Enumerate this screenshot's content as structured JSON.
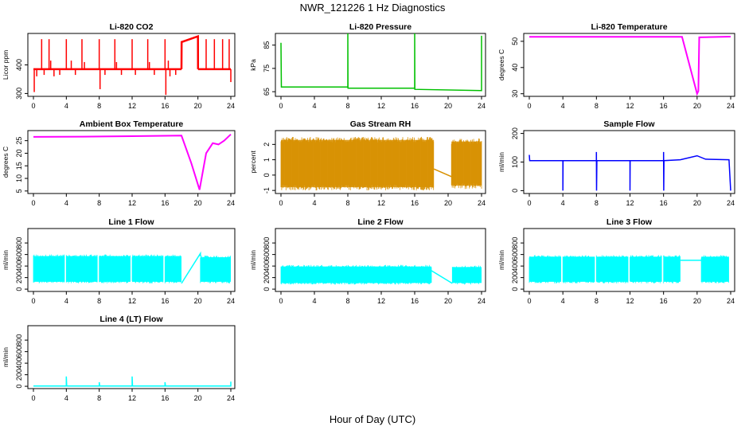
{
  "title": "NWR_121226  1 Hz Diagnostics",
  "xlabel": "Hour of Day (UTC)",
  "x_ticks": [
    0,
    4,
    8,
    12,
    16,
    20,
    24
  ],
  "chart_data": [
    {
      "type": "line",
      "title": "Li-820 CO2",
      "ylabel": "Licor ppm",
      "color": "#ff0000",
      "xlim": [
        0,
        24
      ],
      "ylim": [
        290,
        510
      ],
      "y_ticks": [
        300,
        400
      ],
      "baseline": 385,
      "series": [
        {
          "name": "",
          "values": []
        }
      ],
      "spikes_up": [
        [
          1.0,
          490
        ],
        [
          1.9,
          490
        ],
        [
          2.1,
          415
        ],
        [
          4.0,
          490
        ],
        [
          4.6,
          415
        ],
        [
          5.9,
          490
        ],
        [
          6.2,
          410
        ],
        [
          8.0,
          490
        ],
        [
          9.9,
          490
        ],
        [
          10.1,
          410
        ],
        [
          12.0,
          490
        ],
        [
          13.9,
          490
        ],
        [
          14.1,
          410
        ],
        [
          16.0,
          490
        ],
        [
          16.4,
          415
        ]
      ],
      "spikes_down": [
        [
          0.1,
          305
        ],
        [
          0.4,
          360
        ],
        [
          1.3,
          365
        ],
        [
          2.5,
          360
        ],
        [
          3.2,
          365
        ],
        [
          5.1,
          365
        ],
        [
          8.1,
          315
        ],
        [
          8.7,
          365
        ],
        [
          10.7,
          365
        ],
        [
          12.4,
          365
        ],
        [
          14.7,
          365
        ],
        [
          16.1,
          295
        ],
        [
          16.6,
          360
        ],
        [
          17.3,
          365
        ]
      ],
      "segments": [
        {
          "x": [
            0,
            18.0
          ],
          "y": [
            385,
            385
          ]
        },
        {
          "x": [
            18.0,
            18.02,
            20.0,
            20.01
          ],
          "y": [
            385,
            480,
            500,
            385
          ]
        },
        {
          "x": [
            20.01,
            24
          ],
          "y": [
            385,
            385
          ]
        }
      ],
      "spikes_after": [
        [
          21.0,
          490
        ],
        [
          22.0,
          490
        ],
        [
          23.0,
          490
        ],
        [
          23.8,
          490
        ],
        [
          24.0,
          340
        ]
      ]
    },
    {
      "type": "line",
      "title": "Li-820 Pressure",
      "ylabel": "kPa",
      "color": "#00c000",
      "xlim": [
        0,
        24
      ],
      "ylim": [
        63,
        90
      ],
      "y_ticks": [
        65,
        75,
        85
      ],
      "points": [
        [
          0,
          86
        ],
        [
          0.05,
          67
        ],
        [
          8.0,
          67
        ],
        [
          8.0,
          90
        ],
        [
          8.02,
          66.5
        ],
        [
          16.0,
          66.5
        ],
        [
          16.0,
          90
        ],
        [
          16.02,
          66
        ],
        [
          24.0,
          65.5
        ],
        [
          24.0,
          89
        ]
      ]
    },
    {
      "type": "line",
      "title": "Li-820 Temperature",
      "ylabel": "degrees C",
      "color": "#ff00ff",
      "xlim": [
        0,
        24
      ],
      "ylim": [
        29,
        53
      ],
      "y_ticks": [
        30,
        40,
        50
      ],
      "points": [
        [
          0,
          51.7
        ],
        [
          18.2,
          51.7
        ],
        [
          20.0,
          30
        ],
        [
          20.15,
          31
        ],
        [
          20.25,
          51.5
        ],
        [
          24,
          51.8
        ]
      ]
    },
    {
      "type": "line",
      "title": "Ambient Box Temperature",
      "ylabel": "degrees C",
      "color": "#ff00ff",
      "xlim": [
        0,
        24
      ],
      "ylim": [
        4,
        29
      ],
      "y_ticks": [
        5,
        10,
        15,
        20,
        25
      ],
      "points": [
        [
          0,
          26.5
        ],
        [
          6,
          26.6
        ],
        [
          12,
          26.8
        ],
        [
          18,
          27
        ],
        [
          19.2,
          16
        ],
        [
          20.2,
          5.5
        ],
        [
          21,
          20
        ],
        [
          21.8,
          24
        ],
        [
          22.5,
          23.5
        ],
        [
          23.2,
          25
        ],
        [
          24,
          27.5
        ]
      ]
    },
    {
      "type": "scatter",
      "title": "Gas Stream RH",
      "ylabel": "percent",
      "color": "#d89000",
      "xlim": [
        0,
        24
      ],
      "ylim": [
        -1.2,
        2.9
      ],
      "y_ticks": [
        -1,
        0,
        1,
        2
      ],
      "bands": [
        {
          "x": [
            0,
            18.3
          ],
          "low": -1.0,
          "high": 2.5
        },
        {
          "x": [
            20.4,
            24
          ],
          "low": -0.9,
          "high": 2.4
        }
      ],
      "gap_line": {
        "x": [
          18.3,
          20.4
        ],
        "y": [
          0.4,
          -0.1
        ]
      }
    },
    {
      "type": "line",
      "title": "Sample Flow",
      "ylabel": "ml/min",
      "color": "#0000ff",
      "xlim": [
        0,
        24
      ],
      "ylim": [
        -10,
        210
      ],
      "y_ticks": [
        0,
        100,
        200
      ],
      "points": [
        [
          0,
          125
        ],
        [
          0.05,
          105
        ],
        [
          4,
          105
        ],
        [
          4,
          0
        ],
        [
          4.02,
          105
        ],
        [
          8,
          105
        ],
        [
          8,
          135
        ],
        [
          8.02,
          0
        ],
        [
          8.05,
          105
        ],
        [
          12,
          105
        ],
        [
          12,
          0
        ],
        [
          12.02,
          105
        ],
        [
          16,
          105
        ],
        [
          16,
          135
        ],
        [
          16.02,
          0
        ],
        [
          16.05,
          105
        ],
        [
          18,
          108
        ],
        [
          20,
          122
        ],
        [
          21,
          110
        ],
        [
          23.8,
          108
        ],
        [
          24,
          0
        ]
      ]
    },
    {
      "type": "area",
      "title": "Line 1 Flow",
      "ylabel": "ml/min",
      "color": "#00ffff",
      "xlim": [
        0,
        24
      ],
      "ylim": [
        -40,
        1050
      ],
      "y_ticks": [
        0,
        200,
        400,
        600,
        800
      ],
      "bands": [
        {
          "x": [
            0,
            3.8
          ],
          "low": 100,
          "high": 600
        },
        {
          "x": [
            4.0,
            7.8
          ],
          "low": 100,
          "high": 600
        },
        {
          "x": [
            8.0,
            11.8
          ],
          "low": 100,
          "high": 600
        },
        {
          "x": [
            12.0,
            15.8
          ],
          "low": 100,
          "high": 600
        },
        {
          "x": [
            16.0,
            18.0
          ],
          "low": 100,
          "high": 600
        },
        {
          "x": [
            20.3,
            24.0
          ],
          "low": 100,
          "high": 580
        }
      ],
      "gap_line": {
        "x": [
          18.0,
          20.3,
          20.3
        ],
        "y": [
          100,
          620,
          560
        ]
      }
    },
    {
      "type": "area",
      "title": "Line 2 Flow",
      "ylabel": "ml/min",
      "color": "#00ffff",
      "xlim": [
        0,
        24
      ],
      "ylim": [
        -40,
        1050
      ],
      "y_ticks": [
        0,
        200,
        400,
        600,
        800
      ],
      "bands": [
        {
          "x": [
            0,
            18.0
          ],
          "low": 80,
          "high": 420
        },
        {
          "x": [
            20.5,
            24.0
          ],
          "low": 80,
          "high": 410
        }
      ],
      "gap_line": {
        "x": [
          18.0,
          20.5
        ],
        "y": [
          320,
          100
        ]
      }
    },
    {
      "type": "area",
      "title": "Line 3 Flow",
      "ylabel": "ml/min",
      "color": "#00ffff",
      "xlim": [
        0,
        24
      ],
      "ylim": [
        -40,
        1050
      ],
      "y_ticks": [
        0,
        200,
        400,
        600,
        800
      ],
      "bands": [
        {
          "x": [
            0,
            3.8
          ],
          "low": 100,
          "high": 590
        },
        {
          "x": [
            4.0,
            7.8
          ],
          "low": 100,
          "high": 590
        },
        {
          "x": [
            8.0,
            11.8
          ],
          "low": 100,
          "high": 590
        },
        {
          "x": [
            12.0,
            15.8
          ],
          "low": 100,
          "high": 590
        },
        {
          "x": [
            16.0,
            18.0
          ],
          "low": 100,
          "high": 590
        },
        {
          "x": [
            20.5,
            23.8
          ],
          "low": 100,
          "high": 590
        }
      ],
      "gap_line": {
        "x": [
          18.0,
          20.5
        ],
        "y": [
          500,
          500
        ]
      }
    },
    {
      "type": "line",
      "title": "Line 4 (LT) Flow",
      "ylabel": "ml/min",
      "color": "#00ffff",
      "xlim": [
        0,
        24
      ],
      "ylim": [
        -40,
        1050
      ],
      "y_ticks": [
        0,
        200,
        400,
        600,
        800
      ],
      "points": [
        [
          0,
          5
        ],
        [
          4,
          5
        ],
        [
          4,
          170
        ],
        [
          4.05,
          5
        ],
        [
          8,
          5
        ],
        [
          8,
          70
        ],
        [
          8.05,
          5
        ],
        [
          12,
          5
        ],
        [
          12,
          170
        ],
        [
          12.05,
          5
        ],
        [
          16,
          5
        ],
        [
          16,
          70
        ],
        [
          16.05,
          5
        ],
        [
          24,
          5
        ],
        [
          24,
          80
        ]
      ]
    }
  ]
}
